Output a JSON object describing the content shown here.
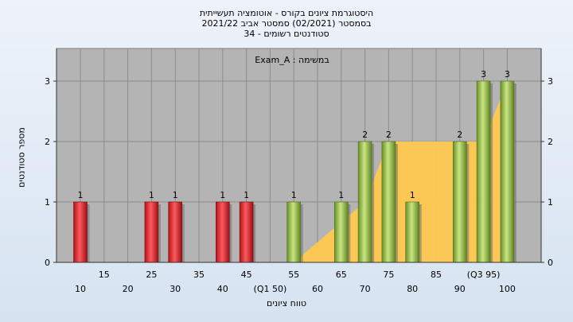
{
  "title": {
    "line1": "היסטוגרמת ציונים בקורס - אוטומציה תעשייתית",
    "line2": "בסמסטר  (02/2021)  סמסטר אביב 2021/22",
    "line3": "סטודנטים רשומים - 34"
  },
  "chart_data": {
    "type": "bar",
    "title": "היסטוגרמת ציונים בקורס - אוטומציה תעשייתית",
    "xlabel": "טווח ציונים",
    "ylabel": "מספר סטודנטים",
    "ylim": [
      0,
      3.4
    ],
    "yticks": [
      0,
      1,
      2,
      3
    ],
    "grid": true,
    "annotation": "במשימה : Exam_A",
    "x_tick_labels_row1": [
      "15",
      "25",
      "35",
      "45",
      "55",
      "65",
      "75",
      "85",
      "(Q3 95)"
    ],
    "x_tick_labels_row2": [
      "10",
      "20",
      "30",
      "40",
      "(Q1 50)",
      "60",
      "70",
      "80",
      "90",
      "100"
    ],
    "series": [
      {
        "name": "bins",
        "x": [
          10,
          25,
          30,
          40,
          45,
          55,
          65,
          70,
          75,
          80,
          90,
          95,
          100
        ],
        "values": [
          1,
          1,
          1,
          1,
          1,
          1,
          1,
          2,
          2,
          1,
          2,
          3,
          3
        ],
        "colors": [
          "red",
          "red",
          "red",
          "red",
          "red",
          "green",
          "green",
          "green",
          "green",
          "green",
          "green",
          "green",
          "green"
        ]
      }
    ],
    "quartile_area": {
      "x": [
        55,
        70,
        75,
        90,
        95,
        100
      ],
      "y": [
        0,
        1,
        2,
        2,
        2,
        3
      ]
    },
    "bar_colors": {
      "red": "#e3262b",
      "green": "#95bf47"
    },
    "area_color": "#ffc950"
  }
}
